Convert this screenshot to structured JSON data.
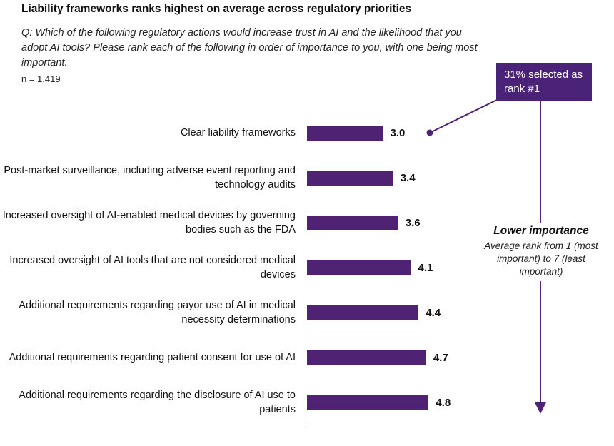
{
  "header": {
    "title": "Liability frameworks ranks highest on average across regulatory priorities",
    "question": "Q: Which of the following regulatory actions would increase trust in AI and the likelihood that you adopt AI tools? Please rank each of the following in order of importance to you, with one being most important.",
    "sample_size": "n = 1,419"
  },
  "callout": {
    "text": "31% selected as rank #1"
  },
  "annotation": {
    "heading": "Lower importance",
    "body": "Average rank from 1 (most important) to 7 (least important)"
  },
  "colors": {
    "bar": "#4F2274",
    "callout_bg": "#4A2277",
    "connector": "#4F2274",
    "axis": "#7a7a7a"
  },
  "chart_data": {
    "type": "bar",
    "orientation": "horizontal",
    "title": "Liability frameworks ranks highest on average across regulatory priorities",
    "categories": [
      "Clear liability frameworks",
      "Post-market surveillance, including adverse event reporting and technology audits",
      "Increased oversight of AI-enabled medical devices by governing bodies such as the FDA",
      "Increased oversight of AI tools that are not considered medical devices",
      "Additional requirements regarding payor use of AI in medical necessity determinations",
      "Additional requirements regarding patient consent for use of AI",
      "Additional requirements regarding the disclosure of AI use to patients"
    ],
    "values": [
      3.0,
      3.4,
      3.6,
      4.1,
      4.4,
      4.7,
      4.8
    ],
    "annotations": [
      "31% selected as rank #1 (points to Clear liability frameworks, value 3.0)"
    ],
    "xlim": [
      0,
      5
    ],
    "xlabel": "Average rank from 1 (most important) to 7 (least important)",
    "grid": false,
    "legend": false
  }
}
